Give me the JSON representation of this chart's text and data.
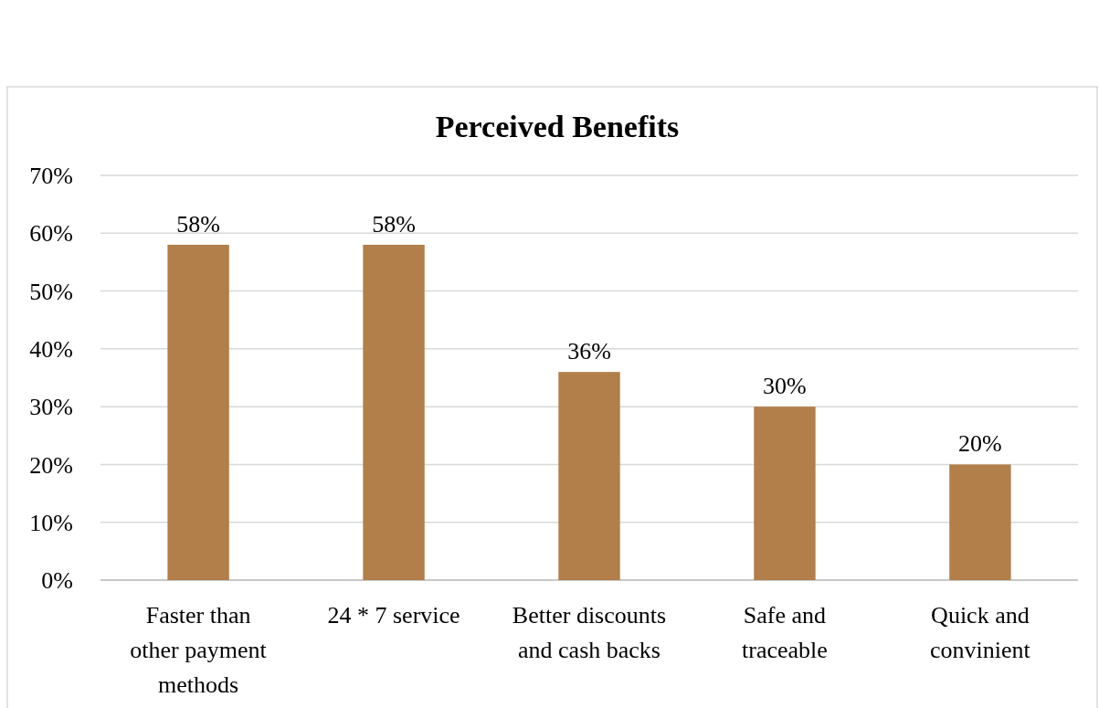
{
  "chart_data": {
    "type": "bar",
    "title": "Perceived Benefits",
    "categories": [
      "Faster than other payment methods",
      "24 * 7 service",
      "Better discounts and cash backs",
      "Safe and traceable",
      "Quick and convinient"
    ],
    "values": [
      58,
      58,
      36,
      30,
      20
    ],
    "value_labels": [
      "58%",
      "58%",
      "36%",
      "30%",
      "20%"
    ],
    "color": "#b27e4a",
    "ylim": [
      0,
      70
    ],
    "yticks": [
      {
        "value": 0,
        "label": "0%"
      },
      {
        "value": 10,
        "label": "10%"
      },
      {
        "value": 20,
        "label": "20%"
      },
      {
        "value": 30,
        "label": "30%"
      },
      {
        "value": 40,
        "label": "40%"
      },
      {
        "value": 50,
        "label": "50%"
      },
      {
        "value": 60,
        "label": "60%"
      },
      {
        "value": 70,
        "label": "70%"
      }
    ],
    "grid": "y"
  }
}
